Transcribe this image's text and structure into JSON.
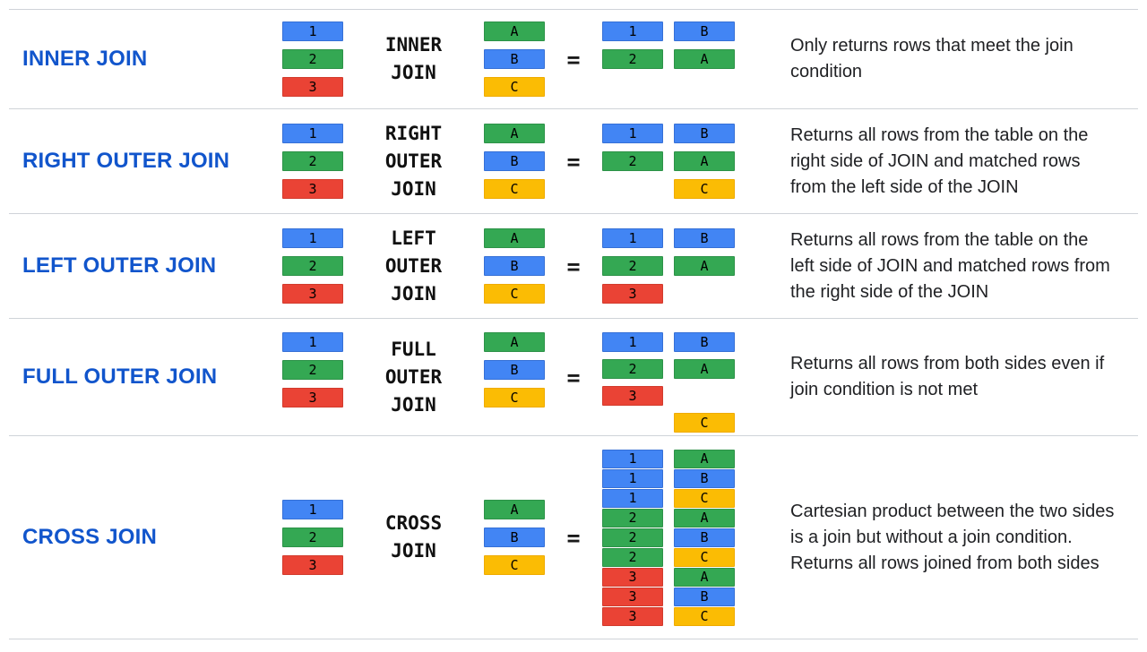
{
  "palette": {
    "blue": {
      "fill": "#4285F4",
      "border": "#3670D6"
    },
    "green": {
      "fill": "#34A853",
      "border": "#2D9248"
    },
    "red": {
      "fill": "#EA4335",
      "border": "#D23B2D"
    },
    "yellow": {
      "fill": "#FBBC04",
      "border": "#EFAB00"
    },
    "label_blue": "#1155CC",
    "divider_gray": "#CFD3D8",
    "text_dark": "#202124"
  },
  "cell_color_map": {
    "1": "blue",
    "2": "green",
    "3": "red",
    "A": "green",
    "B": "blue",
    "C": "yellow"
  },
  "equals_sign": "=",
  "rows": [
    {
      "label": "INNER JOIN",
      "join_keyword_lines": [
        "INNER",
        "JOIN"
      ],
      "left_table": [
        "1",
        "2",
        "3"
      ],
      "right_table": [
        "A",
        "B",
        "C"
      ],
      "result": [
        [
          "1",
          "B"
        ],
        [
          "2",
          "A"
        ]
      ],
      "description": "Only returns rows that meet the join condition"
    },
    {
      "label": "RIGHT OUTER JOIN",
      "join_keyword_lines": [
        "RIGHT",
        "OUTER",
        "JOIN"
      ],
      "left_table": [
        "1",
        "2",
        "3"
      ],
      "right_table": [
        "A",
        "B",
        "C"
      ],
      "result": [
        [
          "1",
          "B"
        ],
        [
          "2",
          "A"
        ],
        [
          null,
          "C"
        ]
      ],
      "description": "Returns all rows from the table on the right side of JOIN and matched rows from the left side of the JOIN"
    },
    {
      "label": "LEFT OUTER JOIN",
      "join_keyword_lines": [
        "LEFT",
        "OUTER",
        "JOIN"
      ],
      "left_table": [
        "1",
        "2",
        "3"
      ],
      "right_table": [
        "A",
        "B",
        "C"
      ],
      "result": [
        [
          "1",
          "B"
        ],
        [
          "2",
          "A"
        ],
        [
          "3",
          null
        ]
      ],
      "description": "Returns all rows from the table on the left side of JOIN and matched rows from the right side of the JOIN"
    },
    {
      "label": "FULL OUTER JOIN",
      "join_keyword_lines": [
        "FULL",
        "OUTER",
        "JOIN"
      ],
      "left_table": [
        "1",
        "2",
        "3"
      ],
      "right_table": [
        "A",
        "B",
        "C"
      ],
      "result": [
        [
          "1",
          "B"
        ],
        [
          "2",
          "A"
        ],
        [
          "3",
          null
        ],
        [
          null,
          "C"
        ]
      ],
      "description": "Returns all rows from both sides even if join condition is not met"
    },
    {
      "label": "CROSS JOIN",
      "join_keyword_lines": [
        "CROSS",
        "JOIN"
      ],
      "left_table": [
        "1",
        "2",
        "3"
      ],
      "right_table": [
        "A",
        "B",
        "C"
      ],
      "result": [
        [
          "1",
          "A"
        ],
        [
          "1",
          "B"
        ],
        [
          "1",
          "C"
        ],
        [
          "2",
          "A"
        ],
        [
          "2",
          "B"
        ],
        [
          "2",
          "C"
        ],
        [
          "3",
          "A"
        ],
        [
          "3",
          "B"
        ],
        [
          "3",
          "C"
        ]
      ],
      "description": "Cartesian product between the two sides is a join but without a join condition. Returns all rows joined from both sides"
    }
  ]
}
